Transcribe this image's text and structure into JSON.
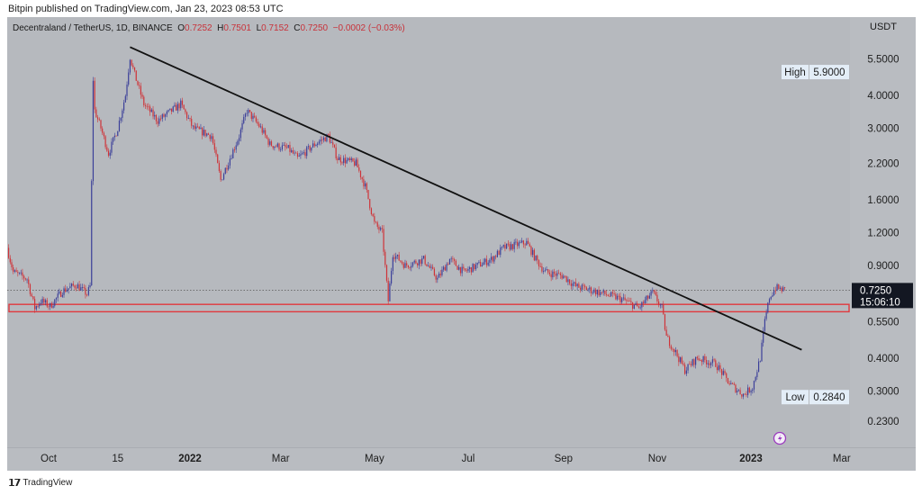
{
  "publisher_line": "Bitpin published on TradingView.com, Jan 23, 2023 08:53 UTC",
  "legend": {
    "symbol": "Decentraland / TetherUS, 1D, BINANCE",
    "o_label": "O",
    "o": "0.7252",
    "h_label": "H",
    "h": "0.7501",
    "l_label": "L",
    "l": "0.7152",
    "c_label": "C",
    "c": "0.7250",
    "change": "−0.0002 (−0.03%)"
  },
  "footer_brand": "TradingView",
  "colors": {
    "up": "#3b3f99",
    "down": "#cf3338",
    "trendline": "#111111",
    "zone": "#e0393e",
    "background": "#b6b9be"
  },
  "icons": {
    "alert": "lightning-icon",
    "brand": "tradingview-logo-icon"
  },
  "chart_data": {
    "type": "candlestick",
    "title": "Decentraland / TetherUS, 1D, BINANCE",
    "currency": "USDT",
    "y_scale": "log",
    "ylim": [
      0.2,
      7.0
    ],
    "x_unit": "days since 2022-01-01",
    "xlim": [
      -119,
      430
    ],
    "y_ticks": [
      {
        "value": 5.5,
        "label": "5.5000"
      },
      {
        "value": 4.0,
        "label": "4.0000"
      },
      {
        "value": 3.0,
        "label": "3.0000"
      },
      {
        "value": 2.2,
        "label": "2.2000"
      },
      {
        "value": 1.6,
        "label": "1.6000"
      },
      {
        "value": 1.2,
        "label": "1.2000"
      },
      {
        "value": 0.9,
        "label": "0.9000"
      },
      {
        "value": 0.55,
        "label": "0.5500"
      },
      {
        "value": 0.4,
        "label": "0.4000"
      },
      {
        "value": 0.3,
        "label": "0.3000"
      },
      {
        "value": 0.23,
        "label": "0.2300"
      }
    ],
    "x_ticks": [
      {
        "day": -92,
        "label": "Oct",
        "bold": false
      },
      {
        "day": -47,
        "label": "15",
        "bold": false
      },
      {
        "day": 0,
        "label": "2022",
        "bold": true
      },
      {
        "day": 59,
        "label": "Mar",
        "bold": false
      },
      {
        "day": 120,
        "label": "May",
        "bold": false
      },
      {
        "day": 181,
        "label": "Jul",
        "bold": false
      },
      {
        "day": 243,
        "label": "Sep",
        "bold": false
      },
      {
        "day": 304,
        "label": "Nov",
        "bold": false
      },
      {
        "day": 365,
        "label": "2023",
        "bold": true
      },
      {
        "day": 424,
        "label": "Mar",
        "bold": false
      }
    ],
    "high": {
      "label": "High",
      "value": 5.9,
      "text": "5.9000"
    },
    "low": {
      "label": "Low",
      "value": 0.284,
      "text": "0.2840"
    },
    "last_price": {
      "value": 0.725,
      "text": "0.7250",
      "countdown": "15:06:10"
    },
    "price_path": [
      [
        -119,
        1.05
      ],
      [
        -115,
        0.85
      ],
      [
        -106,
        0.8
      ],
      [
        -101,
        0.62
      ],
      [
        -97,
        0.66
      ],
      [
        -91,
        0.63
      ],
      [
        -83,
        0.72
      ],
      [
        -74,
        0.76
      ],
      [
        -67,
        0.7
      ],
      [
        -65,
        0.75
      ],
      [
        -63,
        4.6
      ],
      [
        -62,
        3.5
      ],
      [
        -58,
        3.0
      ],
      [
        -53,
        2.4
      ],
      [
        -47,
        3.0
      ],
      [
        -42,
        4.0
      ],
      [
        -39,
        5.6
      ],
      [
        -36,
        4.8
      ],
      [
        -30,
        3.7
      ],
      [
        -21,
        3.2
      ],
      [
        -6,
        3.7
      ],
      [
        2,
        3.0
      ],
      [
        14,
        2.8
      ],
      [
        20,
        1.9
      ],
      [
        32,
        2.8
      ],
      [
        37,
        3.5
      ],
      [
        46,
        3.0
      ],
      [
        52,
        2.6
      ],
      [
        64,
        2.5
      ],
      [
        70,
        2.3
      ],
      [
        81,
        2.6
      ],
      [
        90,
        2.8
      ],
      [
        96,
        2.3
      ],
      [
        108,
        2.2
      ],
      [
        114,
        1.8
      ],
      [
        120,
        1.3
      ],
      [
        125,
        1.2
      ],
      [
        129,
        0.66
      ],
      [
        132,
        1.0
      ],
      [
        140,
        0.9
      ],
      [
        152,
        0.95
      ],
      [
        161,
        0.8
      ],
      [
        169,
        0.95
      ],
      [
        178,
        0.85
      ],
      [
        187,
        0.9
      ],
      [
        196,
        0.95
      ],
      [
        204,
        1.05
      ],
      [
        219,
        1.1
      ],
      [
        225,
        0.95
      ],
      [
        231,
        0.85
      ],
      [
        243,
        0.82
      ],
      [
        251,
        0.75
      ],
      [
        263,
        0.72
      ],
      [
        281,
        0.67
      ],
      [
        292,
        0.62
      ],
      [
        301,
        0.71
      ],
      [
        307,
        0.62
      ],
      [
        310,
        0.48
      ],
      [
        316,
        0.42
      ],
      [
        322,
        0.36
      ],
      [
        330,
        0.4
      ],
      [
        342,
        0.38
      ],
      [
        351,
        0.32
      ],
      [
        360,
        0.29
      ],
      [
        366,
        0.31
      ],
      [
        371,
        0.4
      ],
      [
        374,
        0.55
      ],
      [
        377,
        0.68
      ],
      [
        381,
        0.74
      ],
      [
        387,
        0.725
      ]
    ],
    "trendline": {
      "from": [
        -39,
        6.1
      ],
      "to": [
        398,
        0.43
      ]
    },
    "support_zone": {
      "low": 0.6,
      "high": 0.64
    }
  }
}
